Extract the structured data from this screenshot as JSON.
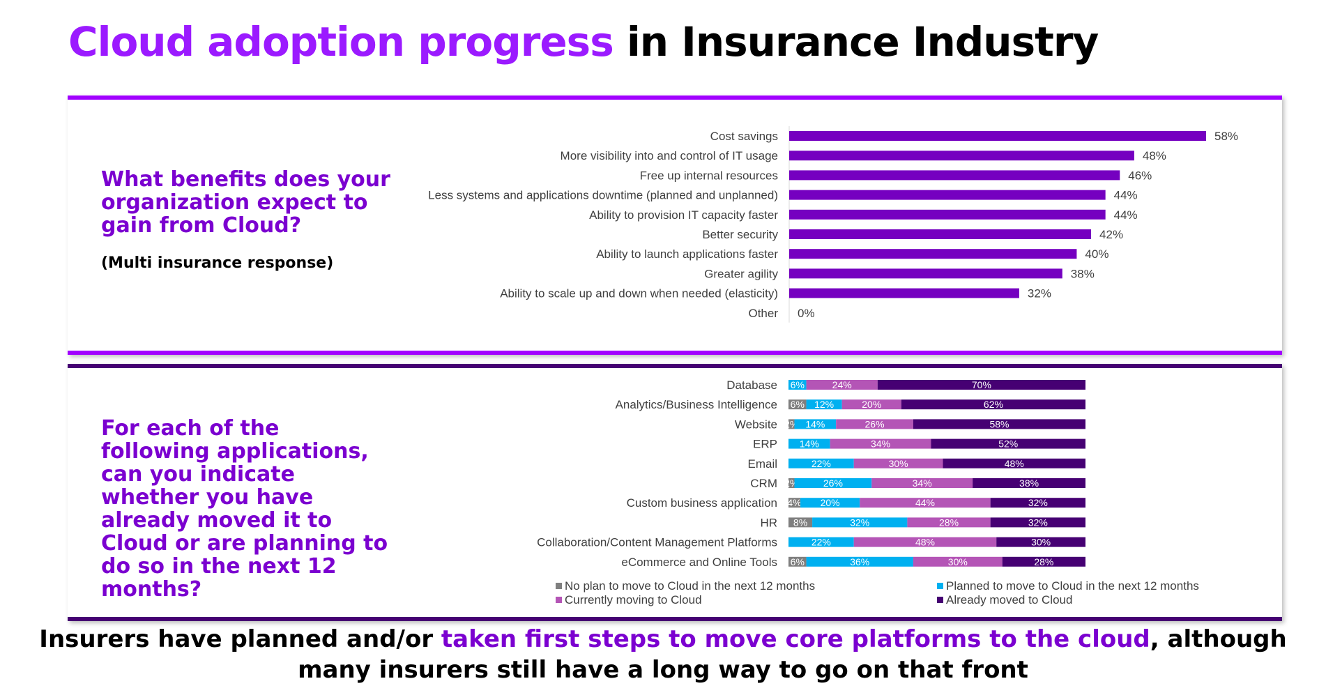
{
  "header": {
    "title_highlight": "Cloud adoption progress",
    "title_rest": " in Insurance Industry"
  },
  "colors": {
    "accent": "#a100ff",
    "dark_purple": "#460073",
    "grey": "#7f7f7f",
    "cyan": "#00b0f0",
    "magenta": "#b455b6",
    "bar_purple": "#7500c0"
  },
  "panel1": {
    "question": "What benefits does your organization expect to gain from Cloud?",
    "note": "(Multi insurance response)"
  },
  "panel2": {
    "question": "For each of the following applications, can you indicate whether you have already moved it to Cloud or are planning to do so in the next 12 months?"
  },
  "chart_data": [
    {
      "type": "bar",
      "orientation": "horizontal",
      "categories": [
        "Cost savings",
        "More visibility into and control of IT usage",
        "Free up internal resources",
        "Less systems and applications downtime (planned and unplanned)",
        "Ability to provision IT capacity faster",
        "Better security",
        "Ability to launch applications faster",
        "Greater agility",
        "Ability to scale up and down when needed (elasticity)",
        "Other"
      ],
      "values": [
        58,
        48,
        46,
        44,
        44,
        42,
        40,
        38,
        32,
        0
      ],
      "data_labels": [
        "58%",
        "48%",
        "46%",
        "44%",
        "44%",
        "42%",
        "40%",
        "38%",
        "32%",
        "0%"
      ],
      "xlim": [
        0,
        60
      ],
      "grid": false,
      "color": "#7500c0"
    },
    {
      "type": "bar",
      "orientation": "horizontal",
      "stacked": true,
      "percent": true,
      "categories": [
        "Database",
        "Analytics/Business Intelligence",
        "Website",
        "ERP",
        "Email",
        "CRM",
        "Custom business application",
        "HR",
        "Collaboration/Content Management Platforms",
        "eCommerce and Online Tools"
      ],
      "series": [
        {
          "name": "No plan to move to Cloud in the next 12 months",
          "color": "#7f7f7f",
          "values": [
            0,
            6,
            2,
            0,
            0,
            2,
            4,
            8,
            0,
            6
          ],
          "labels": [
            "",
            "6%",
            "2%",
            "",
            "",
            "2%",
            "4%",
            "8%",
            "",
            "6%"
          ]
        },
        {
          "name": "Planned to move to Cloud in the next 12 months",
          "color": "#00b0f0",
          "values": [
            6,
            12,
            14,
            14,
            22,
            26,
            20,
            32,
            22,
            36
          ],
          "labels": [
            "6%",
            "12%",
            "14%",
            "14%",
            "22%",
            "26%",
            "20%",
            "32%",
            "22%",
            "36%"
          ]
        },
        {
          "name": "Currently moving to Cloud",
          "color": "#b455b6",
          "values": [
            24,
            20,
            26,
            34,
            30,
            34,
            44,
            28,
            48,
            30
          ],
          "labels": [
            "24%",
            "20%",
            "26%",
            "34%",
            "30%",
            "34%",
            "44%",
            "28%",
            "48%",
            "30%"
          ]
        },
        {
          "name": "Already moved to Cloud",
          "color": "#460073",
          "values": [
            70,
            62,
            58,
            52,
            48,
            38,
            32,
            32,
            30,
            28
          ],
          "labels": [
            "70%",
            "62%",
            "58%",
            "52%",
            "48%",
            "38%",
            "32%",
            "32%",
            "30%",
            "28%"
          ]
        }
      ],
      "legend_placement": "bottom",
      "grid": false
    }
  ],
  "footer": {
    "part1": "Insurers have planned and/or ",
    "highlight": "taken first steps to move core platforms to the cloud",
    "part2": ", although many insurers still have a long way to go on that front"
  }
}
